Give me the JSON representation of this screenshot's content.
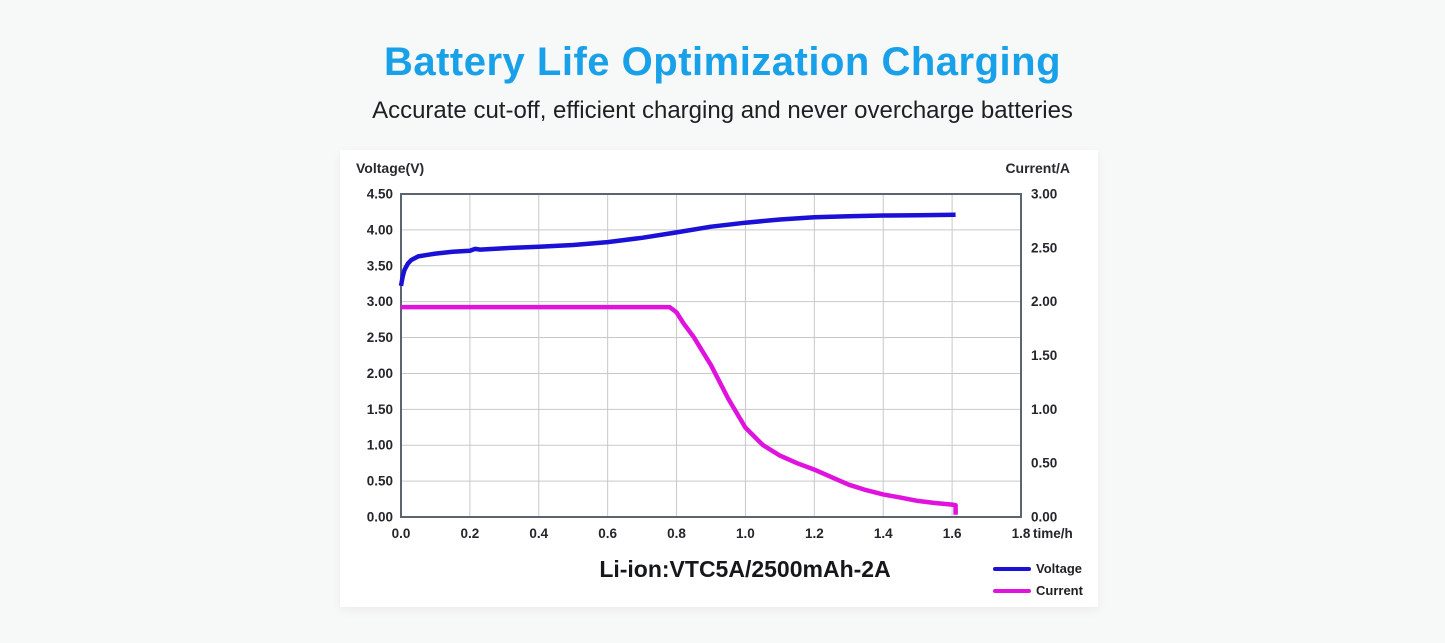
{
  "page": {
    "title": "Battery Life Optimization Charging",
    "subtitle": "Accurate cut-off, efficient charging and never overcharge batteries",
    "title_color": "#18a0e8",
    "background_color": "#f7f8f8",
    "panel_color": "#ffffff"
  },
  "chart_data": {
    "type": "line",
    "title": "Li-ion:VTC5A/2500mAh-2A",
    "grid": true,
    "grid_color": "#c7c9c9",
    "axis_border_color": "#5c6470",
    "tick_text_color": "#24262b",
    "legend_position": "bottom-right",
    "left_axis": {
      "label": "Voltage(V)",
      "min": 0,
      "max": 4.5,
      "ticks": [
        "4.50",
        "4.00",
        "3.50",
        "3.00",
        "2.50",
        "2.00",
        "1.50",
        "1.00",
        "0.50",
        "0.00"
      ]
    },
    "right_axis": {
      "label": "Current/A",
      "min": 0,
      "max": 3,
      "ticks": [
        "3.00",
        "2.50",
        "2.00",
        "1.50",
        "1.00",
        "0.50",
        "0.00"
      ]
    },
    "x_axis": {
      "label": "time/h",
      "min": 0,
      "max": 1.8,
      "ticks": [
        "0.0",
        "0.2",
        "0.4",
        "0.6",
        "0.8",
        "1.0",
        "1.2",
        "1.4",
        "1.6",
        "1.8"
      ]
    },
    "series": [
      {
        "name": "Voltage",
        "axis": "left",
        "color": "#1b10d6",
        "points": [
          [
            0.0,
            3.22
          ],
          [
            0.005,
            3.35
          ],
          [
            0.01,
            3.44
          ],
          [
            0.02,
            3.53
          ],
          [
            0.03,
            3.58
          ],
          [
            0.05,
            3.63
          ],
          [
            0.08,
            3.655
          ],
          [
            0.1,
            3.67
          ],
          [
            0.15,
            3.695
          ],
          [
            0.2,
            3.71
          ],
          [
            0.215,
            3.735
          ],
          [
            0.23,
            3.725
          ],
          [
            0.3,
            3.745
          ],
          [
            0.4,
            3.765
          ],
          [
            0.5,
            3.79
          ],
          [
            0.6,
            3.83
          ],
          [
            0.7,
            3.89
          ],
          [
            0.8,
            3.965
          ],
          [
            0.9,
            4.045
          ],
          [
            1.0,
            4.1
          ],
          [
            1.1,
            4.145
          ],
          [
            1.2,
            4.175
          ],
          [
            1.3,
            4.19
          ],
          [
            1.4,
            4.2
          ],
          [
            1.5,
            4.205
          ],
          [
            1.61,
            4.21
          ]
        ]
      },
      {
        "name": "Current",
        "axis": "right",
        "color": "#e012de",
        "points": [
          [
            0.0,
            1.95
          ],
          [
            0.2,
            1.95
          ],
          [
            0.4,
            1.95
          ],
          [
            0.6,
            1.95
          ],
          [
            0.78,
            1.95
          ],
          [
            0.8,
            1.9
          ],
          [
            0.82,
            1.8
          ],
          [
            0.85,
            1.67
          ],
          [
            0.9,
            1.41
          ],
          [
            0.95,
            1.1
          ],
          [
            1.0,
            0.83
          ],
          [
            1.05,
            0.67
          ],
          [
            1.1,
            0.57
          ],
          [
            1.15,
            0.5
          ],
          [
            1.2,
            0.44
          ],
          [
            1.25,
            0.37
          ],
          [
            1.3,
            0.3
          ],
          [
            1.35,
            0.25
          ],
          [
            1.4,
            0.21
          ],
          [
            1.45,
            0.18
          ],
          [
            1.5,
            0.15
          ],
          [
            1.55,
            0.13
          ],
          [
            1.6,
            0.115
          ],
          [
            1.61,
            0.11
          ],
          [
            1.61,
            0.02
          ]
        ]
      }
    ]
  }
}
